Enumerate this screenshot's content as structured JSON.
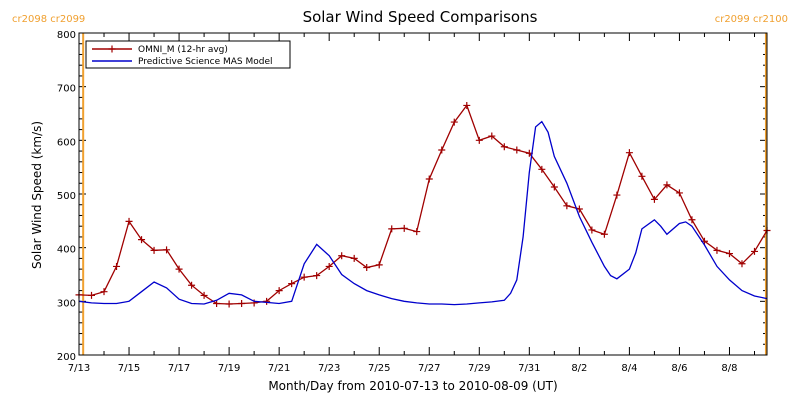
{
  "chart_data": {
    "type": "line",
    "title": "Solar Wind Speed Comparisons",
    "xlabel": "Month/Day from 2010-07-13 to 2010-08-09 (UT)",
    "ylabel": "Solar Wind Speed (km/s)",
    "ylim": [
      200,
      800
    ],
    "xlim": [
      "2010-07-13",
      "2010-08-09"
    ],
    "y_ticks": [
      200,
      300,
      400,
      500,
      600,
      700,
      800
    ],
    "x_tick_labels": [
      "7/13",
      "7/15",
      "7/17",
      "7/19",
      "7/21",
      "7/23",
      "7/25",
      "7/27",
      "7/29",
      "7/31",
      "8/2",
      "8/4",
      "8/6",
      "8/8"
    ],
    "x_tick_dates": [
      "2010-07-13",
      "2010-07-15",
      "2010-07-17",
      "2010-07-19",
      "2010-07-21",
      "2010-07-23",
      "2010-07-25",
      "2010-07-27",
      "2010-07-29",
      "2010-07-31",
      "2010-08-02",
      "2010-08-04",
      "2010-08-06",
      "2010-08-08"
    ],
    "grid": false,
    "legend_position": "top-left",
    "carrington_markers": [
      {
        "date": "2010-07-13 04:00",
        "label_left": "cr2098",
        "label_right": "cr2099",
        "label_side": "left",
        "color": "#f0a030"
      },
      {
        "date": "2010-08-09 11:00",
        "label_left": "cr2099",
        "label_right": "cr2100",
        "label_side": "right",
        "color": "#f0a030"
      }
    ],
    "series": [
      {
        "name": "OMNI_M (12-hr avg)",
        "color": "#a00000",
        "marker": "plus",
        "x": [
          "2010-07-13 00:00",
          "2010-07-13 12:00",
          "2010-07-14 00:00",
          "2010-07-14 12:00",
          "2010-07-15 00:00",
          "2010-07-15 12:00",
          "2010-07-16 00:00",
          "2010-07-16 12:00",
          "2010-07-17 00:00",
          "2010-07-17 12:00",
          "2010-07-18 00:00",
          "2010-07-18 12:00",
          "2010-07-19 00:00",
          "2010-07-19 12:00",
          "2010-07-20 00:00",
          "2010-07-20 12:00",
          "2010-07-21 00:00",
          "2010-07-21 12:00",
          "2010-07-22 00:00",
          "2010-07-22 12:00",
          "2010-07-23 00:00",
          "2010-07-23 12:00",
          "2010-07-24 00:00",
          "2010-07-24 12:00",
          "2010-07-25 00:00",
          "2010-07-25 12:00",
          "2010-07-26 00:00",
          "2010-07-26 12:00",
          "2010-07-27 00:00",
          "2010-07-27 12:00",
          "2010-07-28 00:00",
          "2010-07-28 12:00",
          "2010-07-29 00:00",
          "2010-07-29 12:00",
          "2010-07-30 00:00",
          "2010-07-30 12:00",
          "2010-07-31 00:00",
          "2010-07-31 12:00",
          "2010-08-01 00:00",
          "2010-08-01 12:00",
          "2010-08-02 00:00",
          "2010-08-02 12:00",
          "2010-08-03 00:00",
          "2010-08-03 12:00",
          "2010-08-04 00:00",
          "2010-08-04 12:00",
          "2010-08-05 00:00",
          "2010-08-05 12:00",
          "2010-08-06 00:00",
          "2010-08-06 12:00",
          "2010-08-07 00:00",
          "2010-08-07 12:00",
          "2010-08-08 00:00",
          "2010-08-08 12:00",
          "2010-08-09 00:00",
          "2010-08-09 12:00"
        ],
        "y": [
          312,
          311,
          318,
          365,
          449,
          415,
          395,
          396,
          360,
          330,
          311,
          296,
          295,
          296,
          297,
          300,
          320,
          333,
          345,
          348,
          365,
          385,
          380,
          363,
          368,
          435,
          436,
          430,
          528,
          582,
          634,
          665,
          600,
          608,
          588,
          582,
          576,
          546,
          513,
          478,
          472,
          433,
          425,
          498,
          577,
          533,
          490,
          517,
          502,
          452,
          412,
          395,
          389,
          370,
          393,
          432
        ]
      },
      {
        "name": "Predictive Science MAS Model",
        "color": "#0000cc",
        "marker": "none",
        "x": [
          "2010-07-13 00:00",
          "2010-07-13 12:00",
          "2010-07-14 00:00",
          "2010-07-14 12:00",
          "2010-07-15 00:00",
          "2010-07-15 12:00",
          "2010-07-16 00:00",
          "2010-07-16 12:00",
          "2010-07-17 00:00",
          "2010-07-17 12:00",
          "2010-07-18 00:00",
          "2010-07-18 12:00",
          "2010-07-19 00:00",
          "2010-07-19 12:00",
          "2010-07-20 00:00",
          "2010-07-20 12:00",
          "2010-07-21 00:00",
          "2010-07-21 12:00",
          "2010-07-22 00:00",
          "2010-07-22 12:00",
          "2010-07-23 00:00",
          "2010-07-23 12:00",
          "2010-07-24 00:00",
          "2010-07-24 12:00",
          "2010-07-25 00:00",
          "2010-07-25 12:00",
          "2010-07-26 00:00",
          "2010-07-26 12:00",
          "2010-07-27 00:00",
          "2010-07-27 12:00",
          "2010-07-28 00:00",
          "2010-07-28 12:00",
          "2010-07-29 00:00",
          "2010-07-29 12:00",
          "2010-07-30 00:00",
          "2010-07-30 06:00",
          "2010-07-30 12:00",
          "2010-07-30 18:00",
          "2010-07-31 00:00",
          "2010-07-31 06:00",
          "2010-07-31 12:00",
          "2010-07-31 18:00",
          "2010-08-01 00:00",
          "2010-08-01 12:00",
          "2010-08-02 00:00",
          "2010-08-02 12:00",
          "2010-08-03 00:00",
          "2010-08-03 06:00",
          "2010-08-03 12:00",
          "2010-08-04 00:00",
          "2010-08-04 06:00",
          "2010-08-04 12:00",
          "2010-08-05 00:00",
          "2010-08-05 06:00",
          "2010-08-05 12:00",
          "2010-08-06 00:00",
          "2010-08-06 06:00",
          "2010-08-06 12:00",
          "2010-08-07 00:00",
          "2010-08-07 12:00",
          "2010-08-08 00:00",
          "2010-08-08 12:00",
          "2010-08-09 00:00",
          "2010-08-09 12:00"
        ],
        "y": [
          300,
          297,
          296,
          296,
          300,
          318,
          336,
          325,
          304,
          296,
          295,
          302,
          315,
          312,
          300,
          298,
          296,
          300,
          370,
          406,
          385,
          350,
          333,
          320,
          312,
          305,
          300,
          297,
          295,
          295,
          294,
          295,
          297,
          299,
          302,
          315,
          340,
          420,
          540,
          625,
          635,
          615,
          570,
          520,
          458,
          410,
          365,
          348,
          342,
          360,
          390,
          435,
          452,
          440,
          425,
          445,
          448,
          440,
          405,
          365,
          340,
          320,
          310,
          305
        ]
      }
    ]
  }
}
